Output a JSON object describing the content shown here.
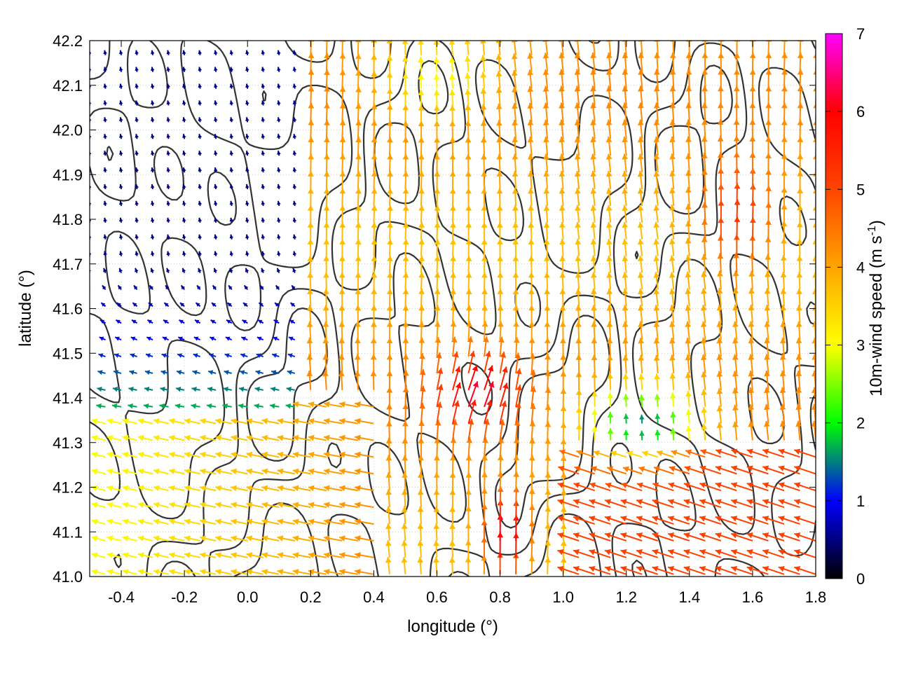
{
  "chart_data": {
    "type": "vector-field",
    "xlabel": "longitude (°)",
    "ylabel": "latitude (°)",
    "xlim": [
      -0.5,
      1.8
    ],
    "ylim": [
      41.0,
      42.2
    ],
    "xticks": [
      -0.4,
      -0.2,
      0.0,
      0.2,
      0.4,
      0.6,
      0.8,
      1.0,
      1.2,
      1.4,
      1.6,
      1.8
    ],
    "xtick_labels": [
      "-0.4",
      "-0.2",
      "0.0",
      "0.2",
      "0.4",
      "0.6",
      "0.8",
      "1.0",
      "1.2",
      "1.4",
      "1.6",
      "1.8"
    ],
    "yticks": [
      41.0,
      41.1,
      41.2,
      41.3,
      41.4,
      41.5,
      41.6,
      41.7,
      41.8,
      41.9,
      42.0,
      42.1,
      42.2
    ],
    "ytick_labels": [
      "41.0",
      "41.1",
      "41.2",
      "41.3",
      "41.4",
      "41.5",
      "41.6",
      "41.7",
      "41.8",
      "41.9",
      "42.0",
      "42.1",
      "42.2"
    ],
    "grid": true,
    "colorbar": {
      "label_main": "10m-wind speed (m s",
      "label_sup": "-1",
      "label_close": ")",
      "range": [
        0,
        7
      ],
      "ticks": [
        0,
        1,
        2,
        3,
        4,
        5,
        6,
        7
      ],
      "tick_labels": [
        "0",
        "1",
        "2",
        "3",
        "4",
        "5",
        "6",
        "7"
      ],
      "stops": [
        {
          "value": 0,
          "color": "#000000"
        },
        {
          "value": 1,
          "color": "#0000ff"
        },
        {
          "value": 2,
          "color": "#00ff00"
        },
        {
          "value": 3,
          "color": "#ffff00"
        },
        {
          "value": 4,
          "color": "#ffa500"
        },
        {
          "value": 5,
          "color": "#ff4500"
        },
        {
          "value": 6,
          "color": "#ff0000"
        },
        {
          "value": 7,
          "color": "#ff00ff"
        }
      ]
    },
    "contour_color": "#333333",
    "vectors": {
      "lon_step": 0.05,
      "lat_step": 0.0375
    }
  }
}
